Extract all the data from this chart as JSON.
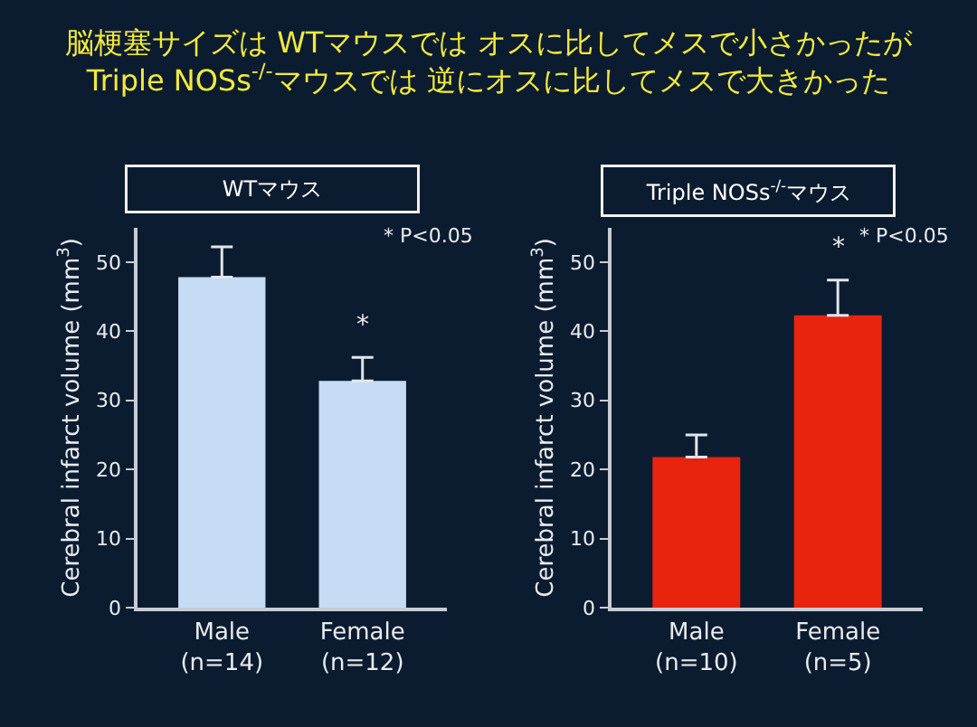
{
  "chart_data": [
    {
      "type": "bar",
      "title": "脳梗塞サイズは WTマウスでは オスに比してメスで小さかったが\nTriple NOSs$^{-/-}$マウスでは 逆にオスに比してメスで大きかった",
      "subtitle": "WTマウス",
      "ylabel": "Cerebral infarct volume (mm$^{3}$)",
      "categories": [
        "Male\n(n=14)",
        "Female\n(n=12)"
      ],
      "series": [
        {
          "color": "#c6dcf4",
          "values": [
            47.8,
            32.8
          ],
          "errors": [
            4.4,
            3.4
          ]
        }
      ],
      "ylim": [
        0,
        55
      ],
      "yticks": [
        0,
        10,
        20,
        30,
        40,
        50
      ],
      "grid": false,
      "annotations": [
        "* P<0.05",
        "*"
      ]
    },
    {
      "type": "bar",
      "subtitle": "Triple NOSs$^{-/-}$マウス",
      "ylabel": "Cerebral infarct volume (mm$^{3}$)",
      "categories": [
        "Male\n(n=10)",
        "Female\n(n=5)"
      ],
      "series": [
        {
          "color": "#e8240e",
          "values": [
            21.8,
            42.3
          ],
          "errors": [
            3.2,
            5.1
          ]
        }
      ],
      "ylim": [
        0,
        55
      ],
      "yticks": [
        0,
        10,
        20,
        30,
        40,
        50
      ],
      "grid": false,
      "annotations": [
        "* P<0.05",
        "*"
      ]
    }
  ]
}
